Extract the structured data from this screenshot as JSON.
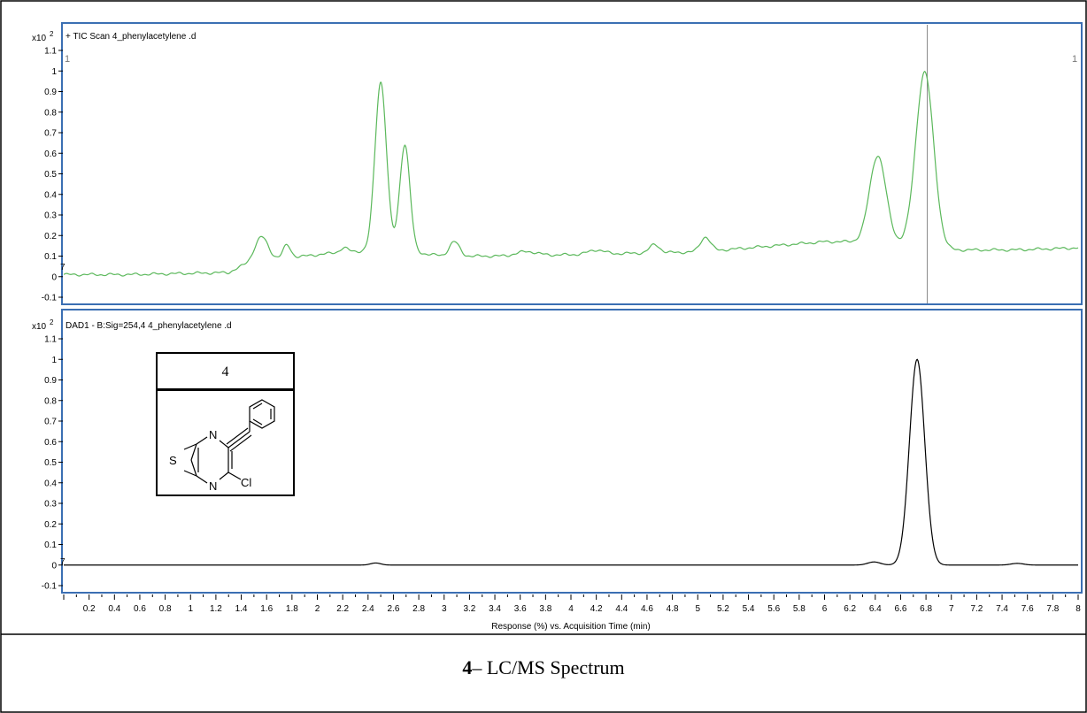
{
  "chart_data": [
    {
      "type": "line",
      "title": "+ TIC Scan 4_phenylacetylene .d",
      "scale_label": "x10",
      "scale_exponent": "2",
      "corner_left": "1",
      "corner_right": "1",
      "baseline_marker": "7",
      "xlim": [
        0,
        8
      ],
      "ylim": [
        -0.12,
        1.12
      ],
      "y_ticks": [
        -0.1,
        0,
        0.1,
        0.2,
        0.3,
        0.4,
        0.5,
        0.6,
        0.7,
        0.8,
        0.9,
        1,
        1.1
      ],
      "grid": false,
      "line_color": "#5bb85b",
      "cursor_x": 6.81,
      "baseline": [
        [
          0,
          0.01
        ],
        [
          0.5,
          0.01
        ],
        [
          1.3,
          0.02
        ],
        [
          1.5,
          0.08
        ],
        [
          1.9,
          0.1
        ],
        [
          2.2,
          0.12
        ],
        [
          2.6,
          0.13
        ],
        [
          3.0,
          0.1
        ],
        [
          3.5,
          0.1
        ],
        [
          4.2,
          0.11
        ],
        [
          5.0,
          0.12
        ],
        [
          5.4,
          0.14
        ],
        [
          6.0,
          0.17
        ],
        [
          6.4,
          0.17
        ],
        [
          6.6,
          0.16
        ],
        [
          7.0,
          0.13
        ],
        [
          7.5,
          0.13
        ],
        [
          8.0,
          0.14
        ]
      ],
      "peaks": [
        {
          "x": 1.56,
          "height": 0.11,
          "width": 0.05
        },
        {
          "x": 1.76,
          "height": 0.06,
          "width": 0.03
        },
        {
          "x": 2.21,
          "height": 0.02,
          "width": 0.03
        },
        {
          "x": 2.5,
          "height": 0.82,
          "width": 0.045
        },
        {
          "x": 2.69,
          "height": 0.52,
          "width": 0.04
        },
        {
          "x": 3.08,
          "height": 0.07,
          "width": 0.04
        },
        {
          "x": 3.65,
          "height": 0.02,
          "width": 0.08
        },
        {
          "x": 4.2,
          "height": 0.02,
          "width": 0.06
        },
        {
          "x": 4.66,
          "height": 0.04,
          "width": 0.04
        },
        {
          "x": 5.06,
          "height": 0.07,
          "width": 0.04
        },
        {
          "x": 6.42,
          "height": 0.42,
          "width": 0.065
        },
        {
          "x": 6.79,
          "height": 0.85,
          "width": 0.07
        }
      ]
    },
    {
      "type": "line",
      "title": "DAD1 - B:Sig=254,4 4_phenylacetylene .d",
      "scale_label": "x10",
      "scale_exponent": "2",
      "baseline_marker": "7",
      "xlim": [
        0,
        8
      ],
      "ylim": [
        -0.12,
        1.12
      ],
      "y_ticks": [
        -0.1,
        0,
        0.1,
        0.2,
        0.3,
        0.4,
        0.5,
        0.6,
        0.7,
        0.8,
        0.9,
        1,
        1.1
      ],
      "x_ticks": [
        0.2,
        0.4,
        0.6,
        0.8,
        1,
        1.2,
        1.4,
        1.6,
        1.8,
        2,
        2.2,
        2.4,
        2.6,
        2.8,
        3,
        3.2,
        3.4,
        3.6,
        3.8,
        4,
        4.2,
        4.4,
        4.6,
        4.8,
        5,
        5.2,
        5.4,
        5.6,
        5.8,
        6,
        6.2,
        6.4,
        6.6,
        6.8,
        7,
        7.2,
        7.4,
        7.6,
        7.8,
        8
      ],
      "xlabel": "Response (%) vs. Acquisition Time (min)",
      "grid": false,
      "line_color": "#000000",
      "baseline": [
        [
          0,
          0
        ],
        [
          8,
          0
        ]
      ],
      "peaks": [
        {
          "x": 2.46,
          "height": 0.01,
          "width": 0.04
        },
        {
          "x": 6.39,
          "height": 0.015,
          "width": 0.05
        },
        {
          "x": 6.73,
          "height": 1.0,
          "width": 0.06
        },
        {
          "x": 7.52,
          "height": 0.008,
          "width": 0.05
        }
      ]
    }
  ],
  "compound": {
    "label": "4",
    "atom_S": "S",
    "atom_N_top": "N",
    "atom_N_bottom": "N",
    "atom_Cl": "Cl"
  },
  "caption": {
    "number": "4",
    "text": "– LC/MS Spectrum"
  }
}
